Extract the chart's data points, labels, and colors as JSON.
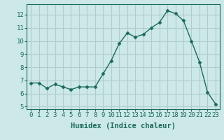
{
  "x": [
    0,
    1,
    2,
    3,
    4,
    5,
    6,
    7,
    8,
    9,
    10,
    11,
    12,
    13,
    14,
    15,
    16,
    17,
    18,
    19,
    20,
    21,
    22,
    23
  ],
  "y": [
    6.8,
    6.8,
    6.4,
    6.7,
    6.5,
    6.3,
    6.5,
    6.5,
    6.5,
    7.5,
    8.5,
    9.8,
    10.6,
    10.3,
    10.5,
    11.0,
    11.4,
    12.3,
    12.1,
    11.55,
    10.0,
    8.4,
    6.1,
    5.2
  ],
  "line_color": "#1a6b5a",
  "marker": "D",
  "marker_size": 2.5,
  "bg_color": "#cce8e8",
  "grid_color": "#b0cccc",
  "xlabel": "Humidex (Indice chaleur)",
  "ylim": [
    4.8,
    12.8
  ],
  "xlim": [
    -0.5,
    23.5
  ],
  "yticks": [
    5,
    6,
    7,
    8,
    9,
    10,
    11,
    12
  ],
  "xticks": [
    0,
    1,
    2,
    3,
    4,
    5,
    6,
    7,
    8,
    9,
    10,
    11,
    12,
    13,
    14,
    15,
    16,
    17,
    18,
    19,
    20,
    21,
    22,
    23
  ],
  "tick_fontsize": 6.5,
  "xlabel_fontsize": 7.5,
  "linewidth": 1.0
}
